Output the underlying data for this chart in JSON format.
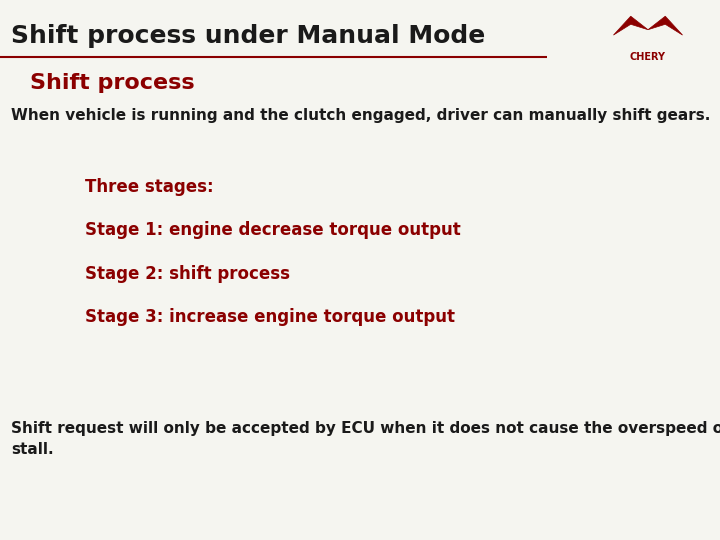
{
  "title": "Shift process under Manual Mode",
  "title_color": "#1a1a1a",
  "title_fontsize": 18,
  "subtitle": "Shift process",
  "subtitle_color": "#8B0000",
  "subtitle_fontsize": 16,
  "line_color": "#8B0000",
  "background_color": "#f5f5f0",
  "body_text1": "When vehicle is running and the clutch engaged, driver can manually shift gears.",
  "body_text1_color": "#1a1a1a",
  "body_text1_fontsize": 11,
  "stages_header": "Three stages:",
  "stages_header_color": "#8B0000",
  "stages_header_fontsize": 12,
  "stage1": "Stage 1: engine decrease torque output",
  "stage2": "Stage 2: shift process",
  "stage3": "Stage 3: increase engine torque output",
  "stages_color": "#8B0000",
  "stages_fontsize": 12,
  "body_text2": "Shift request will only be accepted by ECU when it does not cause the overspeed or\nstall.",
  "body_text2_color": "#1a1a1a",
  "body_text2_fontsize": 11
}
